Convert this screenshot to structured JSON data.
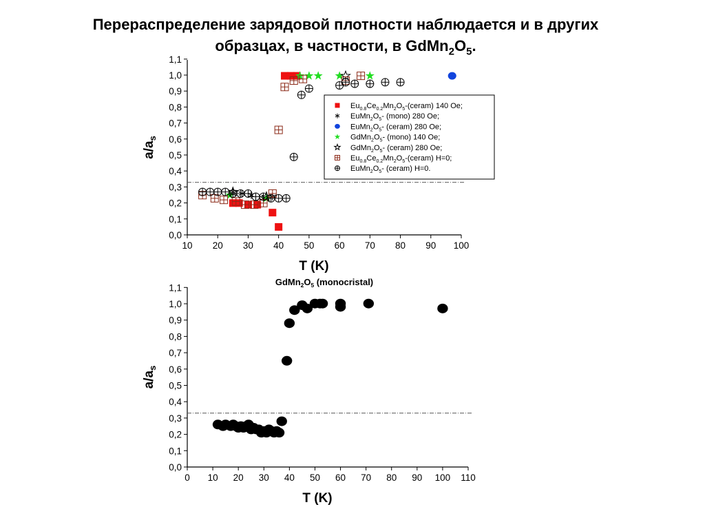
{
  "slide": {
    "title_line1": "Перераспределение зарядовой плотности наблюдается и в других",
    "title_line2_pre": "образцах, в частности, в GdMn",
    "title_sub1": "2",
    "title_mid": "O",
    "title_sub2": "5",
    "title_end": "."
  },
  "chart_data": [
    {
      "type": "scatter",
      "title": "",
      "xlabel": "T (K)",
      "ylabel": "a/a",
      "ylabel_sub": "s",
      "xlim": [
        10,
        100
      ],
      "ylim": [
        0.0,
        1.1
      ],
      "xticks": [
        10,
        20,
        30,
        40,
        50,
        60,
        70,
        80,
        90,
        100
      ],
      "yticks": [
        "0,0",
        "0,1",
        "0,2",
        "0,3",
        "0,4",
        "0,5",
        "0,6",
        "0,7",
        "0,8",
        "0,9",
        "1,0",
        "1,1"
      ],
      "grid": false,
      "legend_position": "right",
      "reference_line_y": 0.33,
      "series": [
        {
          "legend": [
            "Eu",
            "0.8",
            "Ce",
            "0.2",
            "Mn",
            "2",
            "O",
            "5",
            "-(ceram) 140 Oe;"
          ],
          "marker": "square-filled",
          "color": "#ee1111",
          "points": [
            [
              25,
              0.2
            ],
            [
              27,
              0.2
            ],
            [
              30,
              0.19
            ],
            [
              33,
              0.19
            ],
            [
              38,
              0.14
            ],
            [
              40,
              0.05
            ],
            [
              42,
              1.0
            ],
            [
              44,
              1.0
            ],
            [
              46,
              1.0
            ]
          ]
        },
        {
          "legend": [
            "EuMn",
            "2",
            "O",
            "5",
            "-        (mono)    280 Oe;"
          ],
          "marker": "asterisk",
          "color": "#000000",
          "points": [
            [
              25,
              0.27
            ],
            [
              28,
              0.26
            ],
            [
              31,
              0.25
            ],
            [
              35,
              0.23
            ],
            [
              38,
              0.24
            ]
          ]
        },
        {
          "legend": [
            "EuMn",
            "2",
            "O",
            "5",
            "-        (ceram)  280 Oe;"
          ],
          "marker": "circle-filled",
          "color": "#1144dd",
          "points": [
            [
              97,
              1.0
            ]
          ]
        },
        {
          "legend": [
            "GdMn",
            "2",
            "O",
            "5",
            "-        (mono)   140 Oe;"
          ],
          "marker": "star-filled",
          "color": "#22dd22",
          "points": [
            [
              24,
              0.25
            ],
            [
              36,
              0.23
            ],
            [
              47,
              1.0
            ],
            [
              50,
              1.0
            ],
            [
              53,
              1.0
            ],
            [
              60,
              1.0
            ],
            [
              70,
              1.0
            ]
          ]
        },
        {
          "legend": [
            "GdMn",
            "2",
            "O",
            "5",
            "-        (ceram)  280 Oe;"
          ],
          "marker": "star-open",
          "color": "#000000",
          "points": [
            [
              25,
              0.27
            ],
            [
              36,
              0.24
            ],
            [
              62,
              1.0
            ]
          ]
        },
        {
          "legend": [
            "Eu",
            "0.8",
            "Ce",
            "0.2",
            "Mn",
            "2",
            "O",
            "5",
            "-(ceram)     H=0;"
          ],
          "marker": "square-cross",
          "color": "#8b2a18",
          "points": [
            [
              15,
              0.25
            ],
            [
              19,
              0.23
            ],
            [
              22,
              0.22
            ],
            [
              26,
              0.21
            ],
            [
              29,
              0.19
            ],
            [
              32,
              0.19
            ],
            [
              35,
              0.2
            ],
            [
              38,
              0.26
            ],
            [
              40,
              0.66
            ],
            [
              42,
              0.93
            ],
            [
              45,
              0.97
            ],
            [
              48,
              0.98
            ],
            [
              62,
              0.97
            ],
            [
              67,
              1.0
            ]
          ]
        },
        {
          "legend": [
            "EuMn",
            "2",
            "O",
            "5",
            "-          (ceram)  H=0."
          ],
          "marker": "circle-cross",
          "color": "#000000",
          "points": [
            [
              15,
              0.27
            ],
            [
              17.5,
              0.27
            ],
            [
              20,
              0.27
            ],
            [
              22.5,
              0.27
            ],
            [
              25,
              0.26
            ],
            [
              27.5,
              0.26
            ],
            [
              30,
              0.26
            ],
            [
              32.5,
              0.24
            ],
            [
              35,
              0.24
            ],
            [
              37.5,
              0.23
            ],
            [
              40,
              0.23
            ],
            [
              42.5,
              0.23
            ],
            [
              45,
              0.49
            ],
            [
              47.5,
              0.88
            ],
            [
              50,
              0.92
            ],
            [
              60,
              0.94
            ],
            [
              62,
              0.96
            ],
            [
              65,
              0.95
            ],
            [
              70,
              0.95
            ],
            [
              75,
              0.96
            ],
            [
              80,
              0.96
            ]
          ]
        }
      ]
    },
    {
      "type": "scatter",
      "title": [
        "GdMn",
        "2",
        "O",
        "5",
        " (monocristal)"
      ],
      "xlabel": "T (K)",
      "ylabel": "a/a",
      "ylabel_sub": "s",
      "xlim": [
        0,
        110
      ],
      "ylim": [
        0.0,
        1.1
      ],
      "xticks": [
        0,
        10,
        20,
        30,
        40,
        50,
        60,
        70,
        80,
        90,
        100,
        110
      ],
      "yticks": [
        "0,0",
        "0,1",
        "0,2",
        "0,3",
        "0,4",
        "0,5",
        "0,6",
        "0,7",
        "0,8",
        "0,9",
        "1,0",
        "1,1"
      ],
      "grid": false,
      "reference_line_y": 0.33,
      "series": [
        {
          "marker": "circle-filled",
          "color": "#000000",
          "points": [
            [
              12,
              0.26
            ],
            [
              14,
              0.25
            ],
            [
              15,
              0.26
            ],
            [
              17,
              0.25
            ],
            [
              18,
              0.26
            ],
            [
              19,
              0.25
            ],
            [
              20,
              0.24
            ],
            [
              21,
              0.25
            ],
            [
              22,
              0.24
            ],
            [
              23,
              0.25
            ],
            [
              24,
              0.26
            ],
            [
              25,
              0.23
            ],
            [
              26,
              0.24
            ],
            [
              27,
              0.23
            ],
            [
              28,
              0.23
            ],
            [
              29,
              0.21
            ],
            [
              30,
              0.22
            ],
            [
              31,
              0.21
            ],
            [
              32,
              0.23
            ],
            [
              33,
              0.22
            ],
            [
              34,
              0.21
            ],
            [
              35,
              0.22
            ],
            [
              36,
              0.21
            ],
            [
              37,
              0.28
            ],
            [
              39,
              0.65
            ],
            [
              40,
              0.88
            ],
            [
              42,
              0.96
            ],
            [
              45,
              0.99
            ],
            [
              47,
              0.97
            ],
            [
              50,
              1.0
            ],
            [
              52,
              1.0
            ],
            [
              53,
              1.0
            ],
            [
              60,
              0.98
            ],
            [
              60,
              1.0
            ],
            [
              71,
              1.0
            ],
            [
              100,
              0.97
            ]
          ]
        }
      ]
    }
  ]
}
